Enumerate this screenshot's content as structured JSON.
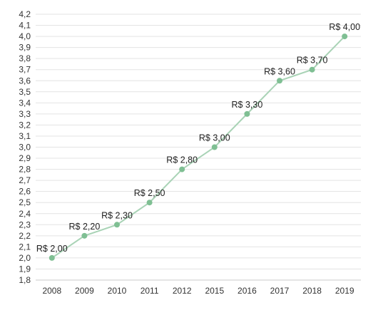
{
  "chart_data": {
    "type": "line",
    "x": [
      "2008",
      "2009",
      "2010",
      "2011",
      "2012",
      "2015",
      "2016",
      "2017",
      "2018",
      "2019"
    ],
    "series": [
      {
        "values": [
          2.0,
          2.2,
          2.3,
          2.5,
          2.8,
          3.0,
          3.3,
          3.6,
          3.7,
          4.0
        ],
        "data_labels": [
          "R$ 2,00",
          "R$ 2,20",
          "R$ 2,30",
          "R$ 2,50",
          "R$ 2,80",
          "R$ 3,00",
          "R$ 3,30",
          "R$ 3,60",
          "R$ 3,70",
          "R$ 4,00"
        ]
      }
    ],
    "y_ticks": [
      1.8,
      1.9,
      2.0,
      2.1,
      2.2,
      2.3,
      2.4,
      2.5,
      2.6,
      2.7,
      2.8,
      2.9,
      3.0,
      3.1,
      3.2,
      3.3,
      3.4,
      3.5,
      3.6,
      3.7,
      3.8,
      3.9,
      4.0,
      4.1,
      4.2
    ],
    "y_tick_labels": [
      "1,8",
      "1,9",
      "2,0",
      "2,1",
      "2,2",
      "2,3",
      "2,4",
      "2,5",
      "2,6",
      "2,7",
      "2,8",
      "2,9",
      "3,0",
      "3,1",
      "3,2",
      "3,3",
      "3,4",
      "3,5",
      "3,6",
      "3,7",
      "3,8",
      "3,9",
      "4,0",
      "4,1",
      "4,2"
    ],
    "ylim": [
      1.8,
      4.2
    ],
    "title": "",
    "xlabel": "",
    "ylabel": "",
    "grid": true,
    "colors": {
      "line": "#a9d3b6",
      "marker": "#7fbf93",
      "grid": "#e3e3e3",
      "axis": "#c8c8c8"
    }
  }
}
